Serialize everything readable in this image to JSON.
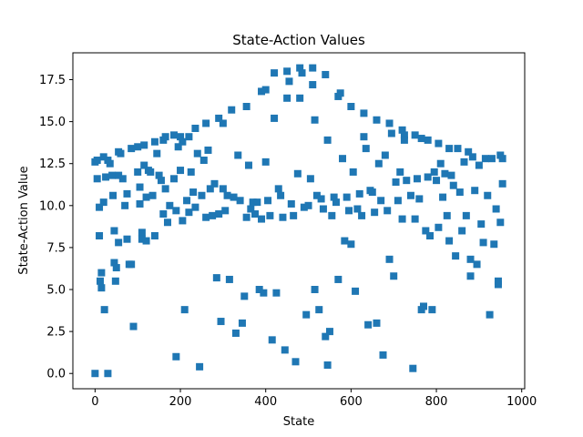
{
  "chart_data": {
    "type": "scatter",
    "title": "State-Action Values",
    "xlabel": "State",
    "ylabel": "State-Action Value",
    "xlim": [
      -52,
      1007
    ],
    "ylim": [
      -0.91,
      19.1
    ],
    "xticks": [
      0,
      200,
      400,
      600,
      800,
      1000
    ],
    "xtick_labels": [
      "0",
      "200",
      "400",
      "600",
      "800",
      "1000"
    ],
    "yticks": [
      0.0,
      2.5,
      5.0,
      7.5,
      10.0,
      12.5,
      15.0,
      17.5
    ],
    "ytick_labels": [
      "0.0",
      "2.5",
      "5.0",
      "7.5",
      "10.0",
      "12.5",
      "15.0",
      "17.5"
    ],
    "grid": false,
    "legend": "none",
    "marker": "square",
    "color": "#1f77b4",
    "series": [
      {
        "points": [
          [
            0,
            12.6
          ],
          [
            0,
            0.0
          ],
          [
            5,
            12.7
          ],
          [
            5,
            11.6
          ],
          [
            10,
            8.2
          ],
          [
            10,
            9.9
          ],
          [
            12,
            5.5
          ],
          [
            15,
            6.0
          ],
          [
            15,
            5.1
          ],
          [
            20,
            12.9
          ],
          [
            20,
            10.2
          ],
          [
            22,
            3.8
          ],
          [
            25,
            11.7
          ],
          [
            30,
            12.7
          ],
          [
            30,
            0.0
          ],
          [
            35,
            12.5
          ],
          [
            40,
            11.8
          ],
          [
            42,
            10.6
          ],
          [
            45,
            6.6
          ],
          [
            45,
            8.5
          ],
          [
            48,
            5.5
          ],
          [
            50,
            6.3
          ],
          [
            55,
            13.2
          ],
          [
            55,
            11.8
          ],
          [
            55,
            7.8
          ],
          [
            60,
            13.1
          ],
          [
            65,
            11.6
          ],
          [
            70,
            10.0
          ],
          [
            75,
            10.7
          ],
          [
            75,
            8.0
          ],
          [
            80,
            6.5
          ],
          [
            85,
            13.4
          ],
          [
            85,
            6.5
          ],
          [
            90,
            2.8
          ],
          [
            100,
            13.5
          ],
          [
            100,
            12.0
          ],
          [
            105,
            11.1
          ],
          [
            105,
            10.1
          ],
          [
            110,
            8.4
          ],
          [
            110,
            8.0
          ],
          [
            115,
            13.6
          ],
          [
            115,
            12.4
          ],
          [
            120,
            10.5
          ],
          [
            120,
            7.9
          ],
          [
            125,
            12.1
          ],
          [
            130,
            12.0
          ],
          [
            135,
            10.6
          ],
          [
            140,
            13.8
          ],
          [
            140,
            8.2
          ],
          [
            145,
            13.1
          ],
          [
            150,
            11.8
          ],
          [
            155,
            11.5
          ],
          [
            160,
            13.9
          ],
          [
            160,
            9.5
          ],
          [
            165,
            14.1
          ],
          [
            165,
            11.0
          ],
          [
            170,
            9.0
          ],
          [
            175,
            10.0
          ],
          [
            185,
            14.2
          ],
          [
            185,
            11.6
          ],
          [
            190,
            9.7
          ],
          [
            190,
            1.0
          ],
          [
            195,
            13.5
          ],
          [
            200,
            14.1
          ],
          [
            200,
            12.1
          ],
          [
            205,
            13.8
          ],
          [
            205,
            9.1
          ],
          [
            210,
            3.8
          ],
          [
            215,
            10.3
          ],
          [
            220,
            14.1
          ],
          [
            220,
            9.6
          ],
          [
            225,
            12.0
          ],
          [
            230,
            10.8
          ],
          [
            235,
            14.6
          ],
          [
            235,
            9.9
          ],
          [
            240,
            13.1
          ],
          [
            245,
            0.4
          ],
          [
            250,
            10.6
          ],
          [
            255,
            12.7
          ],
          [
            260,
            14.9
          ],
          [
            260,
            9.3
          ],
          [
            265,
            13.3
          ],
          [
            270,
            11.0
          ],
          [
            275,
            9.4
          ],
          [
            280,
            11.3
          ],
          [
            285,
            5.7
          ],
          [
            290,
            15.2
          ],
          [
            290,
            9.5
          ],
          [
            295,
            3.1
          ],
          [
            300,
            14.9
          ],
          [
            300,
            11.0
          ],
          [
            305,
            9.7
          ],
          [
            310,
            10.6
          ],
          [
            315,
            5.6
          ],
          [
            320,
            15.7
          ],
          [
            325,
            10.5
          ],
          [
            330,
            2.4
          ],
          [
            335,
            13.0
          ],
          [
            340,
            10.3
          ],
          [
            345,
            3.0
          ],
          [
            350,
            4.6
          ],
          [
            355,
            15.9
          ],
          [
            355,
            9.3
          ],
          [
            360,
            12.4
          ],
          [
            365,
            9.8
          ],
          [
            370,
            10.2
          ],
          [
            375,
            9.5
          ],
          [
            380,
            10.2
          ],
          [
            385,
            5.0
          ],
          [
            390,
            16.8
          ],
          [
            390,
            9.2
          ],
          [
            395,
            4.8
          ],
          [
            400,
            16.9
          ],
          [
            400,
            12.6
          ],
          [
            405,
            10.3
          ],
          [
            410,
            9.4
          ],
          [
            415,
            2.0
          ],
          [
            420,
            17.9
          ],
          [
            420,
            15.2
          ],
          [
            425,
            4.8
          ],
          [
            430,
            11.0
          ],
          [
            435,
            10.6
          ],
          [
            440,
            9.3
          ],
          [
            445,
            1.4
          ],
          [
            450,
            18.0
          ],
          [
            450,
            16.4
          ],
          [
            455,
            17.4
          ],
          [
            460,
            10.1
          ],
          [
            465,
            9.4
          ],
          [
            470,
            0.7
          ],
          [
            475,
            11.9
          ],
          [
            480,
            18.2
          ],
          [
            480,
            16.4
          ],
          [
            485,
            17.9
          ],
          [
            490,
            9.9
          ],
          [
            495,
            3.5
          ],
          [
            500,
            10.0
          ],
          [
            505,
            11.6
          ],
          [
            510,
            18.2
          ],
          [
            510,
            17.2
          ],
          [
            515,
            15.1
          ],
          [
            515,
            5.0
          ],
          [
            520,
            10.6
          ],
          [
            525,
            3.8
          ],
          [
            530,
            10.4
          ],
          [
            535,
            9.8
          ],
          [
            540,
            17.8
          ],
          [
            540,
            2.2
          ],
          [
            545,
            13.9
          ],
          [
            545,
            0.5
          ],
          [
            550,
            2.5
          ],
          [
            555,
            9.4
          ],
          [
            560,
            10.5
          ],
          [
            565,
            10.2
          ],
          [
            570,
            16.5
          ],
          [
            570,
            5.6
          ],
          [
            575,
            16.7
          ],
          [
            580,
            12.8
          ],
          [
            585,
            7.9
          ],
          [
            590,
            10.5
          ],
          [
            595,
            9.7
          ],
          [
            600,
            15.9
          ],
          [
            600,
            7.7
          ],
          [
            605,
            12.0
          ],
          [
            610,
            4.9
          ],
          [
            615,
            9.8
          ],
          [
            620,
            10.7
          ],
          [
            625,
            9.4
          ],
          [
            630,
            15.5
          ],
          [
            630,
            14.1
          ],
          [
            635,
            13.4
          ],
          [
            640,
            2.9
          ],
          [
            645,
            10.9
          ],
          [
            650,
            10.8
          ],
          [
            655,
            9.6
          ],
          [
            660,
            15.1
          ],
          [
            660,
            3.0
          ],
          [
            665,
            12.5
          ],
          [
            670,
            10.3
          ],
          [
            675,
            1.1
          ],
          [
            680,
            13.0
          ],
          [
            685,
            9.7
          ],
          [
            690,
            14.9
          ],
          [
            690,
            6.8
          ],
          [
            695,
            14.3
          ],
          [
            700,
            5.8
          ],
          [
            705,
            11.4
          ],
          [
            710,
            10.3
          ],
          [
            715,
            12.0
          ],
          [
            720,
            14.5
          ],
          [
            720,
            9.2
          ],
          [
            725,
            14.2
          ],
          [
            725,
            13.9
          ],
          [
            730,
            11.5
          ],
          [
            740,
            10.6
          ],
          [
            745,
            0.3
          ],
          [
            750,
            14.2
          ],
          [
            750,
            9.2
          ],
          [
            755,
            11.6
          ],
          [
            760,
            10.4
          ],
          [
            765,
            14.0
          ],
          [
            765,
            3.8
          ],
          [
            770,
            4.0
          ],
          [
            775,
            8.5
          ],
          [
            780,
            13.9
          ],
          [
            780,
            11.7
          ],
          [
            785,
            8.2
          ],
          [
            790,
            3.8
          ],
          [
            795,
            12.0
          ],
          [
            800,
            11.5
          ],
          [
            805,
            13.7
          ],
          [
            805,
            8.7
          ],
          [
            810,
            12.5
          ],
          [
            815,
            10.5
          ],
          [
            820,
            11.9
          ],
          [
            825,
            9.4
          ],
          [
            830,
            13.4
          ],
          [
            830,
            7.9
          ],
          [
            835,
            11.8
          ],
          [
            840,
            11.2
          ],
          [
            845,
            7.0
          ],
          [
            850,
            13.4
          ],
          [
            855,
            10.8
          ],
          [
            860,
            8.5
          ],
          [
            865,
            12.6
          ],
          [
            870,
            9.4
          ],
          [
            875,
            13.2
          ],
          [
            880,
            6.8
          ],
          [
            880,
            5.8
          ],
          [
            885,
            12.9
          ],
          [
            890,
            10.9
          ],
          [
            895,
            6.5
          ],
          [
            900,
            12.4
          ],
          [
            905,
            8.9
          ],
          [
            910,
            7.8
          ],
          [
            915,
            12.8
          ],
          [
            920,
            10.6
          ],
          [
            925,
            3.5
          ],
          [
            930,
            12.8
          ],
          [
            935,
            7.7
          ],
          [
            940,
            9.8
          ],
          [
            945,
            5.3
          ],
          [
            945,
            5.5
          ],
          [
            950,
            13.0
          ],
          [
            950,
            9.0
          ],
          [
            955,
            11.3
          ],
          [
            955,
            12.8
          ]
        ]
      }
    ]
  }
}
